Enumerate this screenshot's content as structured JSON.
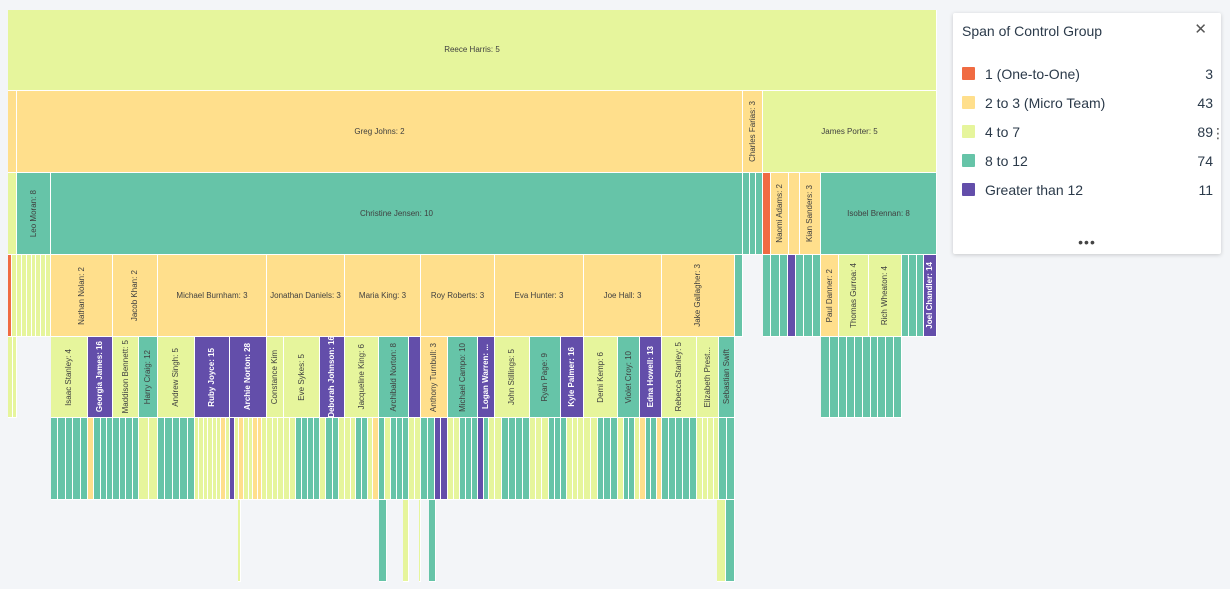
{
  "legend": {
    "title": "Span of Control Group",
    "close_icon": "close-icon",
    "more_icon": "ellipsis-horizontal-icon",
    "items": [
      {
        "label": "1 (One-to-One)",
        "count": "3",
        "color": "#f06b42"
      },
      {
        "label": "2 to 3 (Micro Team)",
        "count": "43",
        "color": "#ffdf8c"
      },
      {
        "label": "4 to 7",
        "count": "89",
        "color": "#e6f59c"
      },
      {
        "label": "8 to 12",
        "count": "74",
        "color": "#66c4a8"
      },
      {
        "label": "Greater than 12",
        "count": "11",
        "color": "#634eaa"
      }
    ]
  },
  "kebab_icon": "more-vertical-icon",
  "chart_data": {
    "type": "icicle",
    "metric": "Span of Control Group",
    "root": {
      "label": "Reece Harris: 5",
      "group": "4 to 7"
    },
    "level_1": [
      {
        "label": "Greg Johns: 2",
        "group": "2 to 3 (Micro Team)"
      },
      {
        "label": "Charles Farias: 3",
        "group": "2 to 3 (Micro Team)"
      },
      {
        "label": "James Porter: 5",
        "group": "4 to 7"
      }
    ],
    "level_2": [
      {
        "label": "Leo Moran: 8",
        "group": "8 to 12"
      },
      {
        "label": "Christine Jensen: 10",
        "group": "8 to 12"
      },
      {
        "label": "Naomi Adams: 2",
        "group": "2 to 3 (Micro Team)"
      },
      {
        "label": "Kian Sanders: 3",
        "group": "2 to 3 (Micro Team)"
      },
      {
        "label": "Isobel Brennan: 8",
        "group": "8 to 12"
      }
    ],
    "level_3": [
      {
        "label": "Nathan Nolan: 2",
        "group": "2 to 3 (Micro Team)"
      },
      {
        "label": "Jacob Khan: 2",
        "group": "2 to 3 (Micro Team)"
      },
      {
        "label": "Michael Burnham: 3",
        "group": "2 to 3 (Micro Team)"
      },
      {
        "label": "Jonathan Daniels: 3",
        "group": "2 to 3 (Micro Team)"
      },
      {
        "label": "Maria King: 3",
        "group": "2 to 3 (Micro Team)"
      },
      {
        "label": "Roy Roberts: 3",
        "group": "2 to 3 (Micro Team)"
      },
      {
        "label": "Eva Hunter: 3",
        "group": "2 to 3 (Micro Team)"
      },
      {
        "label": "Joe Hall: 3",
        "group": "2 to 3 (Micro Team)"
      },
      {
        "label": "Jake Gallagher: 3",
        "group": "2 to 3 (Micro Team)"
      },
      {
        "label": "Paul Danner: 2",
        "group": "2 to 3 (Micro Team)"
      },
      {
        "label": "Thomas Gurroa: 4",
        "group": "4 to 7"
      },
      {
        "label": "Rich Wheaton: 4",
        "group": "4 to 7"
      },
      {
        "label": "Joel Chandler: 14",
        "group": "Greater than 12"
      }
    ],
    "level_4": [
      {
        "label": "Isaac Stanley: 4",
        "group": "4 to 7"
      },
      {
        "label": "Georgia James: 16",
        "group": "Greater than 12"
      },
      {
        "label": "Maddison Bennett: 5",
        "group": "4 to 7"
      },
      {
        "label": "Harry Craig: 12",
        "group": "8 to 12"
      },
      {
        "label": "Andrew Singh: 5",
        "group": "4 to 7"
      },
      {
        "label": "Ruby Joyce: 15",
        "group": "Greater than 12"
      },
      {
        "label": "Archie Norton: 28",
        "group": "Greater than 12"
      },
      {
        "label": "Constance Kim",
        "group": "4 to 7"
      },
      {
        "label": "Eve Sykes: 5",
        "group": "4 to 7"
      },
      {
        "label": "Deborah Johnson: 16",
        "group": "Greater than 12"
      },
      {
        "label": "Jacqueline King: 6",
        "group": "4 to 7"
      },
      {
        "label": "Archibald Norton: 8",
        "group": "8 to 12"
      },
      {
        "label": "Anthony Turnbull: 3",
        "group": "2 to 3 (Micro Team)"
      },
      {
        "label": "Michael Campo: 10",
        "group": "8 to 12"
      },
      {
        "label": "Logan Warren: ...",
        "group": "Greater than 12"
      },
      {
        "label": "John Stillings: 5",
        "group": "4 to 7"
      },
      {
        "label": "Ryan Page: 9",
        "group": "8 to 12"
      },
      {
        "label": "Kyle Palmer: 16",
        "group": "Greater than 12"
      },
      {
        "label": "Demi Kemp: 6",
        "group": "4 to 7"
      },
      {
        "label": "Violet Croy: 10",
        "group": "8 to 12"
      },
      {
        "label": "Edna Howell: 13",
        "group": "Greater than 12"
      },
      {
        "label": "Rebecca Stanley: 5",
        "group": "4 to 7"
      },
      {
        "label": "Elizabeth Prest...",
        "group": "4 to 7"
      },
      {
        "label": "Sebastian Swift",
        "group": "8 to 12"
      }
    ],
    "legend_placement": "top-right"
  }
}
